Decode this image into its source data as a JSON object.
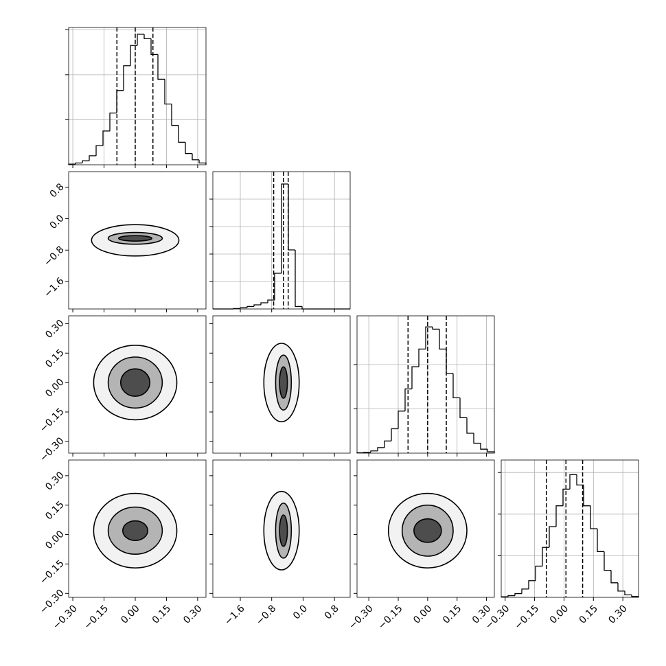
{
  "chart_data": {
    "type": "corner",
    "line_color": "#000000",
    "grid_color": "#b0b0b0",
    "contour_fills": [
      "#f2f2f2",
      "#b4b4b4",
      "#4d4d4d"
    ],
    "params": [
      {
        "xlim": [
          -0.32,
          0.34
        ],
        "ticks": [
          {
            "value": -0.3,
            "label": "−0.30"
          },
          {
            "value": -0.15,
            "label": "−0.15"
          },
          {
            "value": 0,
            "label": "0.00"
          },
          {
            "value": 0.15,
            "label": "0.15"
          },
          {
            "value": 0.3,
            "label": "0.30"
          }
        ],
        "bins": [
          -0.32,
          -0.287,
          -0.254,
          -0.221,
          -0.188,
          -0.155,
          -0.122,
          -0.089,
          -0.056,
          -0.023,
          0.01,
          0.043,
          0.076,
          0.109,
          0.142,
          0.175,
          0.208,
          0.241,
          0.274,
          0.307,
          0.34
        ],
        "counts": [
          3,
          8,
          18,
          40,
          85,
          150,
          230,
          330,
          440,
          530,
          580,
          560,
          490,
          380,
          270,
          175,
          100,
          50,
          22,
          8
        ],
        "hist_ylim": [
          0,
          610
        ],
        "hist_yticks": [
          200,
          400,
          600
        ],
        "quantiles": [
          -0.088,
          0.0,
          0.085
        ]
      },
      {
        "xlim": [
          -2.3,
          1.2
        ],
        "ticks": [
          {
            "value": -1.6,
            "label": "−1.6"
          },
          {
            "value": -0.8,
            "label": "−0.8"
          },
          {
            "value": 0,
            "label": "0.0"
          },
          {
            "value": 0.8,
            "label": "0.8"
          }
        ],
        "bins": [
          -2.3,
          -2.125,
          -1.95,
          -1.775,
          -1.6,
          -1.425,
          -1.25,
          -1.075,
          -0.9,
          -0.725,
          -0.55,
          -0.375,
          -0.2,
          -0.025,
          0.15,
          0.325,
          0.5,
          0.675,
          0.85,
          1.025,
          1.2
        ],
        "counts": [
          0,
          0,
          0,
          3,
          9,
          18,
          30,
          45,
          65,
          260,
          910,
          430,
          18,
          0,
          0,
          0,
          0,
          0,
          0,
          0
        ],
        "hist_ylim": [
          0,
          1000
        ],
        "hist_yticks": [
          200,
          400,
          600,
          800
        ],
        "quantiles": [
          -0.75,
          -0.5,
          -0.38
        ]
      },
      {
        "xlim": [
          -0.36,
          0.34
        ],
        "ticks": [
          {
            "value": -0.3,
            "label": "−0.30"
          },
          {
            "value": -0.15,
            "label": "−0.15"
          },
          {
            "value": 0,
            "label": "0.00"
          },
          {
            "value": 0.15,
            "label": "0.15"
          },
          {
            "value": 0.3,
            "label": "0.30"
          }
        ],
        "bins": [
          -0.36,
          -0.325,
          -0.29,
          -0.255,
          -0.22,
          -0.185,
          -0.15,
          -0.115,
          -0.08,
          -0.045,
          -0.01,
          0.025,
          0.06,
          0.095,
          0.13,
          0.165,
          0.2,
          0.235,
          0.27,
          0.305,
          0.34
        ],
        "counts": [
          2,
          4,
          10,
          25,
          55,
          110,
          190,
          290,
          390,
          470,
          570,
          560,
          470,
          360,
          250,
          160,
          90,
          45,
          18,
          6
        ],
        "hist_ylim": [
          0,
          620
        ],
        "hist_yticks": [
          200,
          400
        ],
        "quantiles": [
          -0.1,
          0.0,
          0.095
        ]
      },
      {
        "xlim": [
          -0.32,
          0.38
        ],
        "ticks": [
          {
            "value": -0.3,
            "label": "−0.30"
          },
          {
            "value": -0.15,
            "label": "−0.15"
          },
          {
            "value": 0,
            "label": "0.00"
          },
          {
            "value": 0.15,
            "label": "0.15"
          },
          {
            "value": 0.3,
            "label": "0.30"
          }
        ],
        "bins": [
          -0.32,
          -0.285,
          -0.25,
          -0.215,
          -0.18,
          -0.145,
          -0.11,
          -0.075,
          -0.04,
          -0.005,
          0.03,
          0.065,
          0.1,
          0.135,
          0.17,
          0.205,
          0.24,
          0.275,
          0.31,
          0.345,
          0.38
        ],
        "counts": [
          3,
          8,
          18,
          40,
          80,
          150,
          240,
          340,
          440,
          520,
          590,
          540,
          440,
          330,
          220,
          130,
          70,
          30,
          12,
          4
        ],
        "hist_ylim": [
          0,
          660
        ],
        "hist_yticks": [
          200,
          400,
          600
        ],
        "quantiles": [
          -0.09,
          0.01,
          0.095
        ]
      }
    ],
    "panels": [
      {
        "pair": [
          0,
          1
        ],
        "contours": [
          [
            0.0,
            -0.55,
            0.21,
            0.4
          ],
          [
            0.0,
            -0.5,
            0.13,
            0.15
          ],
          [
            0.0,
            -0.5,
            0.08,
            0.07
          ]
        ]
      },
      {
        "pair": [
          0,
          2
        ],
        "contours": [
          [
            0.0,
            0.0,
            0.2,
            0.19
          ],
          [
            0.0,
            0.0,
            0.13,
            0.13
          ],
          [
            0.0,
            0.0,
            0.07,
            0.07
          ]
        ]
      },
      {
        "pair": [
          1,
          2
        ],
        "contours": [
          [
            -0.55,
            0.0,
            0.45,
            0.2
          ],
          [
            -0.5,
            0.0,
            0.2,
            0.14
          ],
          [
            -0.5,
            0.0,
            0.1,
            0.08
          ]
        ]
      },
      {
        "pair": [
          0,
          3
        ],
        "contours": [
          [
            0.0,
            0.02,
            0.2,
            0.19
          ],
          [
            0.0,
            0.02,
            0.13,
            0.12
          ],
          [
            0.0,
            0.02,
            0.06,
            0.05
          ]
        ]
      },
      {
        "pair": [
          1,
          3
        ],
        "contours": [
          [
            -0.55,
            0.02,
            0.45,
            0.2
          ],
          [
            -0.5,
            0.02,
            0.2,
            0.14
          ],
          [
            -0.5,
            0.02,
            0.1,
            0.08
          ]
        ]
      },
      {
        "pair": [
          2,
          3
        ],
        "contours": [
          [
            0.0,
            0.02,
            0.2,
            0.19
          ],
          [
            0.0,
            0.02,
            0.13,
            0.13
          ],
          [
            0.0,
            0.02,
            0.07,
            0.06
          ]
        ]
      }
    ]
  }
}
